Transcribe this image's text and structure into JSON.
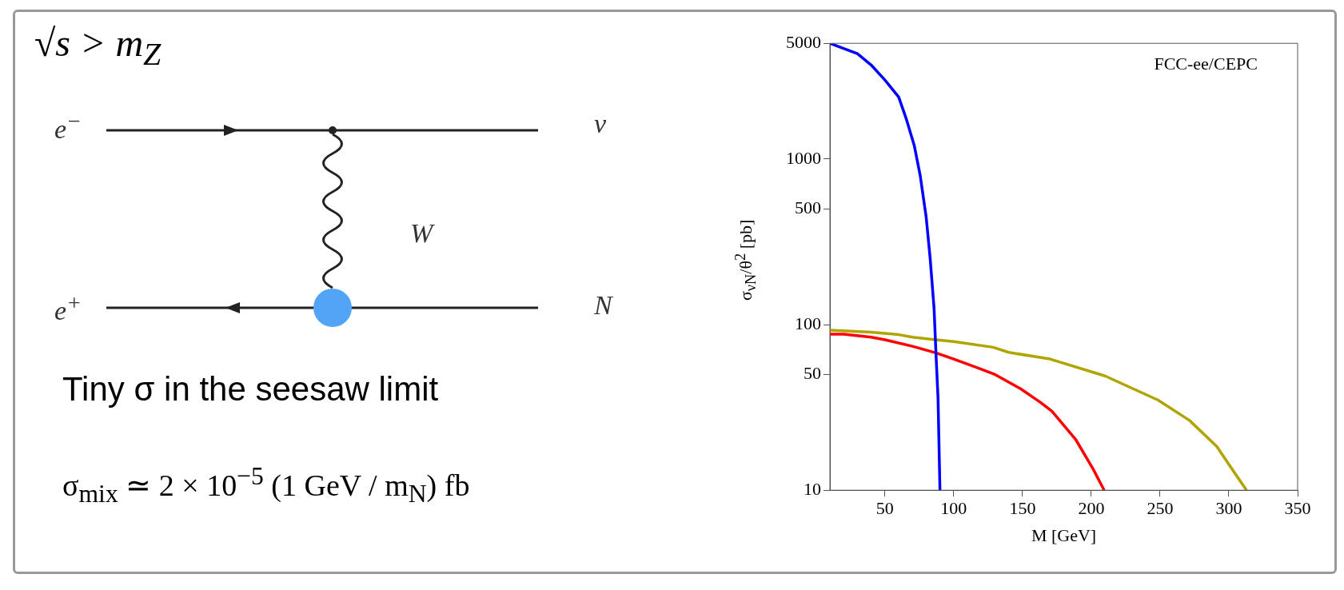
{
  "chart_data": {
    "type": "line",
    "xlabel": "M [GeV]",
    "ylabel": "σ$_{νN}$/θ$^{2}$ [pb]",
    "log": "y",
    "xlim": [
      10,
      350
    ],
    "xticks": [
      50,
      100,
      150,
      200,
      250,
      300,
      350
    ],
    "ylim": [
      10,
      5000
    ],
    "yticks": [
      10,
      50,
      100,
      500,
      1000,
      5000
    ],
    "grid": false,
    "marker": "none",
    "line_style": "solid",
    "series": [
      {
        "color": "#0000ff",
        "x": [
          10,
          30,
          40,
          50,
          60,
          65.7,
          71.4,
          75.7,
          80,
          82.9,
          85.7,
          87.1,
          88.6,
          90
        ],
        "values": [
          5000,
          4330,
          3700,
          3000,
          2370,
          1730,
          1200,
          790,
          445,
          250,
          126,
          67,
          36,
          10
        ]
      },
      {
        "color": "#ff0000",
        "x": [
          10,
          20,
          40,
          50,
          70,
          87,
          100,
          117,
          130,
          148.6,
          162.9,
          171.4,
          188.6,
          201.4,
          209.4
        ],
        "values": [
          87.7,
          87.7,
          84,
          81,
          74,
          67.5,
          62,
          55,
          50,
          41,
          34,
          30,
          20.3,
          13.4,
          10
        ]
      },
      {
        "color": "#b0a400",
        "x": [
          10,
          40,
          60,
          70,
          87,
          100,
          128.6,
          140,
          170,
          210,
          248.6,
          271.4,
          291.4,
          304.3,
          312.9
        ],
        "values": [
          92.5,
          90,
          87,
          84,
          81,
          79,
          73,
          68,
          62,
          49,
          35,
          26.4,
          18.3,
          12.7,
          10
        ]
      }
    ],
    "annotations": [
      "FCC-ee/CEPC",
      "√s > m$_{Z}$",
      "e$^{−}$",
      "ν",
      "W",
      "e$^{+}$",
      "N",
      "Tiny σ in the seesaw limit",
      "σ$_{mix}$ ≃ 2 × 10$^{−5}$ (1 GeV / m$_{N}$) fb"
    ]
  }
}
